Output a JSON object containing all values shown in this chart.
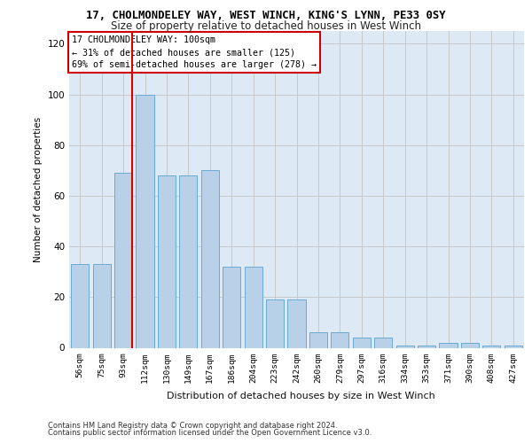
{
  "title_line1": "17, CHOLMONDELEY WAY, WEST WINCH, KING'S LYNN, PE33 0SY",
  "title_line2": "Size of property relative to detached houses in West Winch",
  "xlabel": "Distribution of detached houses by size in West Winch",
  "ylabel": "Number of detached properties",
  "bins": [
    "56sqm",
    "75sqm",
    "93sqm",
    "112sqm",
    "130sqm",
    "149sqm",
    "167sqm",
    "186sqm",
    "204sqm",
    "223sqm",
    "242sqm",
    "260sqm",
    "279sqm",
    "297sqm",
    "316sqm",
    "334sqm",
    "353sqm",
    "371sqm",
    "390sqm",
    "408sqm",
    "427sqm"
  ],
  "bar_values": [
    33,
    33,
    69,
    100,
    68,
    68,
    70,
    32,
    32,
    19,
    19,
    6,
    6,
    4,
    4,
    1,
    1,
    2,
    2,
    1,
    1
  ],
  "bar_color": "#b8d0e8",
  "bar_edge_color": "#6aaad4",
  "red_line_color": "#dd0000",
  "red_line_bin_index": 2,
  "annotation_text": "17 CHOLMONDELEY WAY: 100sqm\n← 31% of detached houses are smaller (125)\n69% of semi-detached houses are larger (278) →",
  "annotation_box_edgecolor": "#cc0000",
  "annotation_bg_color": "#ffffff",
  "ylim": [
    0,
    125
  ],
  "yticks": [
    0,
    20,
    40,
    60,
    80,
    100,
    120
  ],
  "grid_color": "#c8c8c8",
  "bg_color": "#ddeaf6",
  "footer_line1": "Contains HM Land Registry data © Crown copyright and database right 2024.",
  "footer_line2": "Contains public sector information licensed under the Open Government Licence v3.0."
}
